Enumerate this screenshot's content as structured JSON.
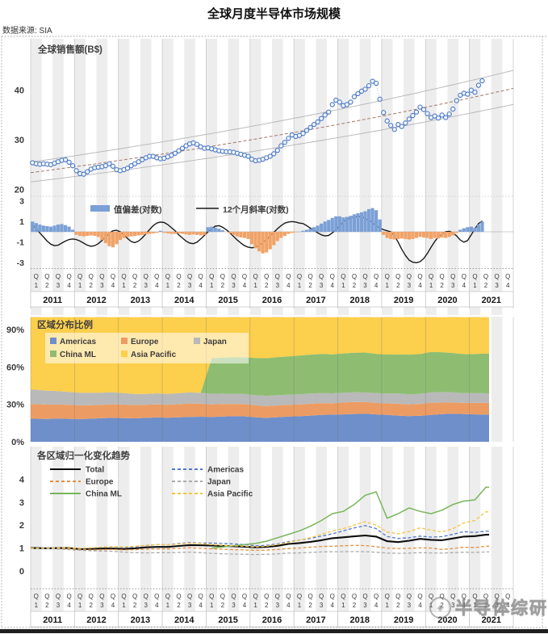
{
  "page": {
    "title": "全球月度半导体市场规模",
    "source": "数据来源: SIA"
  },
  "watermark": {
    "text": "半导体综研"
  },
  "axis": {
    "quarter_letter": "Q",
    "quarter_numbers": [
      "1",
      "2",
      "3",
      "4"
    ],
    "years": [
      "2011",
      "2012",
      "2013",
      "2014",
      "2015",
      "2016",
      "2017",
      "2018",
      "2019",
      "2020",
      "2021"
    ]
  },
  "colors": {
    "stripe": "#ededed",
    "year_grid": "#c9c9c9",
    "frame_dotted": "#9a9a9a",
    "scatter_ring": "#4a77c4",
    "scatter_fill": "#f2f6fc",
    "scatter_link": "#9ab4de",
    "trend_center": "#a2786a",
    "trend_outer": "#b5b5b5",
    "bar_positive": "#7ba0d6",
    "bar_negative": "#f1a368",
    "slope_line": "#1a1a1a"
  },
  "chart_data": [
    {
      "id": "monthly_sales",
      "type": "scatter",
      "title": "全球销售额(B$)",
      "x_unit": "month",
      "x_start": "2011-01",
      "x_end": "2021-04",
      "yticks": [
        20,
        30,
        40
      ],
      "ylim": [
        19,
        50
      ],
      "trend_channel": {
        "shape": "exponential",
        "center_start": 23.4,
        "center_end": 40.2,
        "upper_ratio": 1.09,
        "lower_ratio": 0.92
      },
      "values": [
        25.4,
        25.2,
        25.1,
        25.2,
        25.1,
        25.0,
        25.3,
        25.6,
        25.9,
        26.0,
        25.5,
        24.8,
        23.8,
        23.2,
        23.1,
        23.6,
        24.1,
        24.4,
        24.5,
        24.6,
        24.8,
        25.2,
        24.7,
        24.0,
        23.8,
        24.0,
        24.3,
        24.8,
        25.2,
        25.6,
        26.0,
        26.4,
        26.7,
        26.7,
        26.4,
        26.2,
        26.3,
        26.6,
        26.9,
        27.3,
        27.8,
        28.3,
        28.8,
        29.2,
        29.4,
        29.1,
        28.6,
        28.3,
        28.4,
        28.2,
        28.0,
        27.8,
        27.7,
        27.6,
        27.6,
        27.5,
        27.3,
        27.1,
        26.9,
        26.7,
        26.1,
        25.8,
        25.9,
        26.1,
        26.4,
        26.7,
        27.2,
        27.9,
        28.8,
        29.5,
        30.3,
        31.0,
        30.7,
        30.9,
        31.3,
        31.9,
        32.5,
        33.1,
        33.6,
        34.3,
        35.0,
        35.6,
        37.1,
        38.0,
        37.6,
        36.9,
        37.1,
        37.6,
        38.7,
        39.3,
        39.8,
        40.2,
        40.9,
        41.8,
        41.4,
        38.2,
        35.5,
        33.8,
        32.9,
        32.1,
        33.1,
        32.7,
        33.4,
        34.2,
        34.9,
        35.6,
        36.6,
        36.1,
        35.3,
        34.5,
        34.8,
        34.4,
        35.0,
        34.5,
        35.2,
        36.2,
        37.9,
        39.0,
        39.4,
        39.2,
        40.0,
        39.6,
        41.0,
        41.9
      ]
    },
    {
      "id": "deviation_and_slope",
      "type": "bar+line",
      "legend": [
        "值偏差(对数)",
        "12个月斜率(对数)"
      ],
      "yticks": [
        3,
        1,
        -1,
        -3
      ],
      "ylim": [
        -3.4,
        3.4
      ],
      "bar_values": [
        1.0,
        0.85,
        0.7,
        0.6,
        0.55,
        0.5,
        0.6,
        0.7,
        0.75,
        0.65,
        0.5,
        0.2,
        -0.3,
        -0.4,
        -0.45,
        -0.4,
        -0.35,
        -0.4,
        -0.5,
        -0.8,
        -1.1,
        -1.4,
        -1.5,
        -1.2,
        -0.8,
        -0.6,
        -0.5,
        -0.45,
        -0.4,
        -0.35,
        -0.3,
        -0.25,
        -0.2,
        -0.15,
        -0.1,
        0.1,
        -0.1,
        -0.15,
        -0.2,
        -0.2,
        -0.15,
        -0.2,
        -0.25,
        -0.3,
        -0.25,
        -0.3,
        -0.35,
        -0.3,
        0.45,
        0.5,
        0.4,
        0.3,
        0.15,
        0.0,
        -0.15,
        -0.3,
        -0.45,
        -0.55,
        -0.6,
        -0.7,
        -1.2,
        -1.6,
        -1.9,
        -2.1,
        -2.0,
        -1.7,
        -1.3,
        -0.9,
        -0.6,
        -0.4,
        -0.2,
        -0.1,
        -0.05,
        0.0,
        0.1,
        0.2,
        0.3,
        0.45,
        0.6,
        0.8,
        1.0,
        1.15,
        1.35,
        1.5,
        1.5,
        1.4,
        1.45,
        1.55,
        1.7,
        1.8,
        1.9,
        2.0,
        2.2,
        2.3,
        2.1,
        1.2,
        -0.3,
        -0.6,
        -0.7,
        -0.75,
        -0.7,
        -0.65,
        -0.7,
        -0.75,
        -0.7,
        -0.6,
        -0.5,
        -0.55,
        -0.6,
        -0.7,
        -0.6,
        -0.65,
        -0.55,
        -0.6,
        -0.5,
        -0.35,
        -0.1,
        0.2,
        0.35,
        0.45,
        0.5,
        0.4,
        0.7,
        1.0
      ],
      "line_values": [
        0.7,
        0.3,
        -0.1,
        -0.5,
        -0.9,
        -1.2,
        -1.35,
        -1.3,
        -1.1,
        -0.9,
        -0.75,
        -0.7,
        -0.75,
        -0.9,
        -1.1,
        -1.3,
        -1.4,
        -1.35,
        -1.15,
        -0.85,
        -0.5,
        -0.15,
        0.1,
        0.15,
        0.0,
        -0.3,
        -0.65,
        -0.95,
        -1.05,
        -0.9,
        -0.6,
        -0.2,
        0.2,
        0.6,
        0.85,
        0.95,
        0.9,
        0.7,
        0.4,
        0.1,
        -0.3,
        -0.6,
        -0.9,
        -1.1,
        -1.15,
        -1.0,
        -0.7,
        -0.35,
        0.0,
        0.3,
        0.55,
        0.6,
        0.45,
        0.2,
        -0.1,
        -0.45,
        -0.8,
        -1.1,
        -1.35,
        -1.5,
        -1.55,
        -1.5,
        -1.3,
        -1.05,
        -0.75,
        -0.4,
        -0.05,
        0.3,
        0.6,
        0.85,
        0.95,
        1.0,
        0.95,
        0.85,
        0.8,
        0.6,
        0.35,
        0.15,
        -0.1,
        -0.3,
        -0.4,
        -0.35,
        -0.1,
        0.2,
        0.6,
        0.95,
        1.2,
        1.35,
        1.45,
        1.5,
        1.45,
        1.3,
        1.1,
        0.9,
        0.6,
        0.35,
        0.2,
        0.1,
        0.0,
        -0.4,
        -1.0,
        -1.7,
        -2.3,
        -2.75,
        -2.95,
        -3.0,
        -2.9,
        -2.6,
        -2.1,
        -1.5,
        -0.95,
        -0.5,
        -0.2,
        0.0,
        0.05,
        -0.1,
        -0.4,
        -0.8,
        -1.0,
        -0.85,
        -0.3,
        0.3,
        0.8,
        1.05
      ]
    },
    {
      "id": "regional_share",
      "type": "area_stacked_percent",
      "title": "区域分布比例",
      "x_unit": "quarter",
      "x_start": "2011Q1",
      "x_end": "2021Q2",
      "ytick_labels": [
        "0%",
        "30%",
        "60%",
        "90%"
      ],
      "ytick_values": [
        0,
        30,
        60,
        90
      ],
      "series": [
        {
          "name": "Americas",
          "color": "#6f8fca",
          "values": [
            18.5,
            18.3,
            18.6,
            18.4,
            18.2,
            18.5,
            18.9,
            19.2,
            19.0,
            18.8,
            19.2,
            19.5,
            19.3,
            19.6,
            19.9,
            20.1,
            19.8,
            20.3,
            20.6,
            20.4,
            19.6,
            19.2,
            19.7,
            20.3,
            20.5,
            21.0,
            21.5,
            21.8,
            22.0,
            22.3,
            22.5,
            22.0,
            21.5,
            21.0,
            20.6,
            20.8,
            21.5,
            22.2,
            22.5,
            22.3,
            22.0,
            21.8
          ]
        },
        {
          "name": "Europe",
          "color": "#ec9c63",
          "values": [
            11.8,
            11.5,
            11.3,
            11.2,
            11.0,
            10.8,
            10.7,
            10.9,
            10.8,
            10.7,
            10.5,
            10.6,
            10.4,
            10.6,
            10.8,
            10.5,
            10.2,
            10.0,
            9.8,
            9.9,
            9.7,
            9.5,
            9.4,
            9.3,
            9.4,
            9.5,
            9.4,
            9.2,
            9.5,
            9.6,
            9.4,
            9.2,
            9.3,
            9.5,
            9.4,
            9.6,
            9.8,
            9.2,
            9.0,
            8.9,
            9.2,
            9.4
          ]
        },
        {
          "name": "Japan",
          "color": "#b9b9b9",
          "values": [
            11.5,
            11.2,
            10.8,
            10.4,
            10.2,
            10.0,
            9.8,
            9.6,
            9.2,
            8.9,
            8.7,
            8.8,
            8.7,
            8.8,
            8.9,
            8.7,
            8.5,
            8.3,
            8.1,
            8.0,
            8.1,
            8.2,
            8.3,
            8.2,
            8.3,
            8.2,
            8.1,
            7.9,
            7.9,
            7.8,
            7.7,
            7.8,
            8.0,
            8.2,
            8.1,
            8.0,
            8.3,
            8.5,
            8.2,
            7.9,
            7.8,
            7.7
          ]
        },
        {
          "name": "China ML",
          "color": "#8ebd72",
          "values": [
            0,
            0,
            0,
            0,
            0,
            0,
            0,
            0,
            0,
            0,
            0,
            0,
            0,
            0,
            0,
            0,
            28.5,
            29.0,
            29.3,
            29.5,
            29.8,
            30.2,
            30.5,
            30.8,
            31.0,
            31.2,
            31.5,
            31.3,
            31.5,
            31.8,
            32.0,
            31.6,
            31.2,
            31.5,
            31.8,
            32.0,
            32.5,
            32.0,
            31.5,
            31.2,
            31.5,
            31.8
          ]
        },
        {
          "name": "Asia Pacific",
          "color": "#fccf4c",
          "values": null,
          "note": "remainder to 100%"
        }
      ]
    },
    {
      "id": "normalized_trend",
      "type": "line",
      "title": "各区域归一化变化趋势",
      "x_unit": "quarter",
      "x_start": "2011Q1",
      "x_end": "2021Q2",
      "yticks": [
        0,
        1,
        2,
        3,
        4
      ],
      "series": [
        {
          "name": "Total",
          "color": "#0d0d0d",
          "dash": "solid",
          "width": 2.1,
          "values": [
            1.0,
            0.99,
            1.0,
            1.0,
            0.95,
            0.96,
            0.98,
            0.98,
            0.96,
            0.99,
            1.03,
            1.05,
            1.05,
            1.09,
            1.13,
            1.12,
            1.11,
            1.09,
            1.08,
            1.06,
            1.03,
            1.05,
            1.1,
            1.18,
            1.22,
            1.27,
            1.34,
            1.43,
            1.47,
            1.51,
            1.55,
            1.5,
            1.3,
            1.26,
            1.32,
            1.4,
            1.36,
            1.34,
            1.42,
            1.5,
            1.52,
            1.58
          ]
        },
        {
          "name": "Americas",
          "color": "#5577cc",
          "dash": "dashed",
          "width": 1.3,
          "values": [
            1.0,
            1.01,
            1.02,
            1.03,
            0.98,
            1.0,
            1.04,
            1.06,
            1.03,
            1.06,
            1.12,
            1.15,
            1.14,
            1.2,
            1.24,
            1.22,
            1.22,
            1.2,
            1.18,
            1.15,
            1.1,
            1.12,
            1.18,
            1.28,
            1.35,
            1.42,
            1.52,
            1.62,
            1.75,
            1.88,
            1.98,
            1.85,
            1.5,
            1.42,
            1.45,
            1.52,
            1.48,
            1.5,
            1.6,
            1.72,
            1.68,
            1.74
          ]
        },
        {
          "name": "Europe",
          "color": "#e2903f",
          "dash": "dashed",
          "width": 1.3,
          "values": [
            1.0,
            0.99,
            0.98,
            0.97,
            0.93,
            0.92,
            0.93,
            0.94,
            0.92,
            0.93,
            0.95,
            0.96,
            0.96,
            0.99,
            1.01,
            0.99,
            0.97,
            0.95,
            0.93,
            0.92,
            0.9,
            0.91,
            0.94,
            0.98,
            1.0,
            1.04,
            1.07,
            1.08,
            1.1,
            1.12,
            1.11,
            1.06,
            1.0,
            0.98,
            0.99,
            1.01,
            1.0,
            0.94,
            0.98,
            1.04,
            1.02,
            1.08
          ]
        },
        {
          "name": "Japan",
          "color": "#ababab",
          "dash": "dashed",
          "width": 1.3,
          "values": [
            1.0,
            0.98,
            0.96,
            0.93,
            0.9,
            0.88,
            0.87,
            0.86,
            0.82,
            0.8,
            0.79,
            0.8,
            0.8,
            0.81,
            0.82,
            0.8,
            0.77,
            0.75,
            0.74,
            0.73,
            0.72,
            0.73,
            0.75,
            0.78,
            0.79,
            0.81,
            0.83,
            0.84,
            0.84,
            0.85,
            0.84,
            0.82,
            0.78,
            0.77,
            0.78,
            0.8,
            0.79,
            0.78,
            0.8,
            0.82,
            0.81,
            0.83
          ]
        },
        {
          "name": "China ML",
          "color": "#7ab55c",
          "dash": "solid",
          "width": 1.5,
          "start_quarter_index": 16,
          "values": [
            1.0,
            1.05,
            1.1,
            1.15,
            1.2,
            1.3,
            1.45,
            1.6,
            1.75,
            1.95,
            2.2,
            2.5,
            2.6,
            2.9,
            3.3,
            3.45,
            2.3,
            2.5,
            2.75,
            2.6,
            2.5,
            2.65,
            2.9,
            3.05,
            3.1,
            3.65
          ]
        },
        {
          "name": "Asia Pacific",
          "color": "#f5c63e",
          "dash": "dashed",
          "width": 1.3,
          "values": [
            1.0,
            1.0,
            1.01,
            1.02,
            0.99,
            1.01,
            1.04,
            1.06,
            1.05,
            1.08,
            1.12,
            1.15,
            1.14,
            1.18,
            1.22,
            1.2,
            1.15,
            1.12,
            1.1,
            1.08,
            1.05,
            1.08,
            1.15,
            1.25,
            1.35,
            1.45,
            1.6,
            1.75,
            1.85,
            2.0,
            2.15,
            2.0,
            1.7,
            1.62,
            1.72,
            1.88,
            1.78,
            1.7,
            1.85,
            2.1,
            2.2,
            2.58
          ]
        }
      ]
    }
  ]
}
